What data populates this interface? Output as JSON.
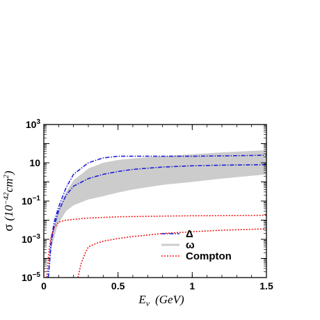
{
  "chart_data": {
    "type": "line",
    "title": "",
    "xlabel": {
      "main": "E",
      "sub": "ν",
      "unit": "(GeV)"
    },
    "ylabel": {
      "symbol": "σ",
      "unit_prefix": "(10",
      "unit_exp": "−42",
      "unit_main": "cm",
      "unit_pow": "2",
      "unit_close": ")"
    },
    "xlim": [
      0,
      1.5
    ],
    "ylim": [
      1e-05,
      1000
    ],
    "yscale": "log",
    "x_ticks": [
      {
        "value": 0,
        "label": "0"
      },
      {
        "value": 0.5,
        "label": "0.5"
      },
      {
        "value": 1,
        "label": "1"
      },
      {
        "value": 1.5,
        "label": "1.5"
      }
    ],
    "y_ticks": [
      {
        "value": 1e-05,
        "base": "10",
        "exp": "−5"
      },
      {
        "value": 0.001,
        "base": "10",
        "exp": "−3"
      },
      {
        "value": 0.1,
        "base": "10",
        "exp": "−1"
      },
      {
        "value": 10,
        "base": "10",
        "exp": ""
      },
      {
        "value": 1000,
        "base": "10",
        "exp": "3"
      }
    ],
    "legend_position": "bottom-right",
    "band": {
      "name": "ω",
      "color": "#cccccc",
      "x": [
        0.03,
        0.05,
        0.08,
        0.1,
        0.15,
        0.2,
        0.3,
        0.4,
        0.5,
        0.6,
        0.8,
        1.0,
        1.2,
        1.5
      ],
      "upper": [
        1e-05,
        0.0008,
        0.01,
        0.04,
        0.3,
        1.2,
        5,
        10,
        14,
        17,
        22,
        28,
        35,
        45
      ],
      "lower": [
        1e-05,
        0.0003,
        0.0025,
        0.007,
        0.03,
        0.06,
        0.12,
        0.18,
        0.28,
        0.4,
        0.7,
        1.0,
        1.5,
        2.5
      ]
    },
    "series": [
      {
        "name": "Δ",
        "color": "#1f1fd6",
        "dash": "6,2,1.5,2",
        "x": [
          0.03,
          0.05,
          0.07,
          0.1,
          0.15,
          0.2,
          0.3,
          0.4,
          0.5,
          0.6,
          0.8,
          1.0,
          1.2,
          1.5
        ],
        "y": [
          1e-05,
          0.001,
          0.008,
          0.05,
          0.5,
          2.5,
          10,
          18,
          22,
          22,
          22,
          22,
          23,
          25
        ]
      },
      {
        "name": "",
        "color": "#1f1fd6",
        "dash": "6,2,1.5,2",
        "x": [
          0.03,
          0.05,
          0.07,
          0.1,
          0.15,
          0.2,
          0.3,
          0.4,
          0.5,
          0.6,
          0.8,
          1.0,
          1.2,
          1.5
        ],
        "y": [
          1e-05,
          0.0007,
          0.005,
          0.03,
          0.2,
          0.6,
          1.5,
          2.5,
          3.5,
          4.5,
          6,
          7,
          7.5,
          8
        ]
      },
      {
        "name": "",
        "color": "#f01818",
        "dash": "2,2",
        "x": [
          0.02,
          0.03,
          0.04,
          0.05,
          0.07,
          0.1,
          0.15,
          0.2,
          0.3,
          0.5,
          0.7,
          1.0,
          1.5
        ],
        "y": [
          1e-05,
          0.0001,
          0.0005,
          0.0015,
          0.004,
          0.008,
          0.01,
          0.011,
          0.013,
          0.015,
          0.016,
          0.017,
          0.018
        ]
      },
      {
        "name": "Compton",
        "color": "#f01818",
        "dash": "2,2",
        "x": [
          0.23,
          0.25,
          0.28,
          0.3,
          0.35,
          0.4,
          0.5,
          0.6,
          0.8,
          1.0,
          1.2,
          1.5
        ],
        "y": [
          1e-05,
          5e-05,
          0.0002,
          0.0004,
          0.0006,
          0.0008,
          0.0011,
          0.0014,
          0.002,
          0.0025,
          0.003,
          0.0035
        ]
      }
    ],
    "legend": [
      {
        "label": "Δ",
        "kind": "line",
        "color": "#1f1fd6",
        "dash": "6,2,1.5,2"
      },
      {
        "label": "ω",
        "kind": "band",
        "color": "#cccccc",
        "dash": ""
      },
      {
        "label": "Compton",
        "kind": "line",
        "color": "#f01818",
        "dash": "2,2"
      }
    ]
  }
}
